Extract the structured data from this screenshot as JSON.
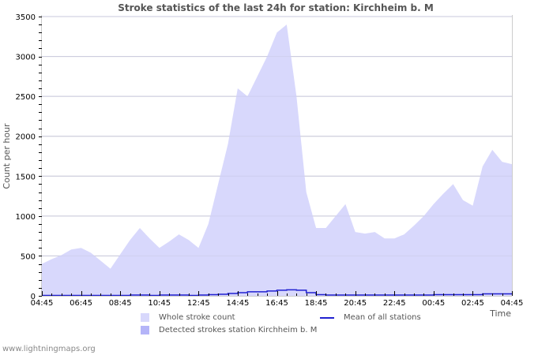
{
  "chart_data": {
    "type": "area",
    "title": "Stroke statistics of the last 24h for station: Kirchheim b. M",
    "xlabel": "Time",
    "ylabel": "Count per hour",
    "ylim": [
      0,
      3500
    ],
    "yticks": [
      0,
      500,
      1000,
      1500,
      2000,
      2500,
      3000,
      3500
    ],
    "xtick_labels": [
      "04:45",
      "06:45",
      "08:45",
      "10:45",
      "12:45",
      "14:45",
      "16:45",
      "18:45",
      "20:45",
      "22:45",
      "00:45",
      "02:45",
      "04:45"
    ],
    "grid": true,
    "legend_position": "bottom",
    "x": [
      "04:45",
      "05:15",
      "05:45",
      "06:15",
      "06:45",
      "07:15",
      "07:45",
      "08:15",
      "08:45",
      "09:15",
      "09:45",
      "10:15",
      "10:45",
      "11:15",
      "11:45",
      "12:15",
      "12:45",
      "13:15",
      "13:45",
      "14:15",
      "14:45",
      "15:15",
      "15:45",
      "16:15",
      "16:45",
      "17:15",
      "17:45",
      "18:15",
      "18:45",
      "19:15",
      "19:45",
      "20:15",
      "20:45",
      "21:15",
      "21:45",
      "22:15",
      "22:45",
      "23:15",
      "23:45",
      "00:15",
      "00:45",
      "01:15",
      "01:45",
      "02:15",
      "02:45",
      "03:15",
      "03:45",
      "04:15",
      "04:45"
    ],
    "series": [
      {
        "name": "Whole stroke count",
        "type": "area",
        "color": "#d8d8fc",
        "values": [
          400,
          460,
          510,
          580,
          600,
          540,
          440,
          340,
          520,
          700,
          850,
          720,
          600,
          680,
          770,
          700,
          600,
          900,
          1400,
          1900,
          2600,
          2500,
          2750,
          3000,
          3300,
          3400,
          2500,
          1300,
          850,
          850,
          1000,
          1150,
          800,
          780,
          800,
          720,
          720,
          770,
          880,
          1000,
          1150,
          1280,
          1400,
          1200,
          1130,
          1620,
          1830,
          1680,
          1650
        ]
      },
      {
        "name": "Detected strokes station Kirchheim b. M",
        "type": "area",
        "color": "#b4b4f8",
        "values": [
          0,
          0,
          0,
          0,
          0,
          0,
          0,
          0,
          0,
          0,
          0,
          0,
          0,
          0,
          0,
          0,
          0,
          0,
          0,
          0,
          0,
          0,
          0,
          0,
          0,
          0,
          0,
          0,
          0,
          0,
          0,
          0,
          0,
          0,
          0,
          0,
          0,
          0,
          0,
          0,
          0,
          0,
          0,
          0,
          0,
          0,
          0,
          0,
          0
        ]
      },
      {
        "name": "Mean of all stations",
        "type": "line",
        "color": "#2020d0",
        "values": [
          5,
          5,
          5,
          5,
          5,
          5,
          5,
          5,
          5,
          10,
          10,
          5,
          10,
          10,
          10,
          5,
          10,
          15,
          20,
          30,
          40,
          50,
          50,
          60,
          70,
          75,
          70,
          40,
          15,
          10,
          10,
          10,
          10,
          10,
          10,
          10,
          10,
          10,
          10,
          10,
          15,
          15,
          15,
          15,
          15,
          25,
          25,
          25,
          25
        ]
      }
    ]
  },
  "legend": {
    "whole": "Whole stroke count",
    "detected": "Detected strokes station Kirchheim b. M",
    "mean": "Mean of all stations"
  },
  "footer": "www.lightningmaps.org"
}
